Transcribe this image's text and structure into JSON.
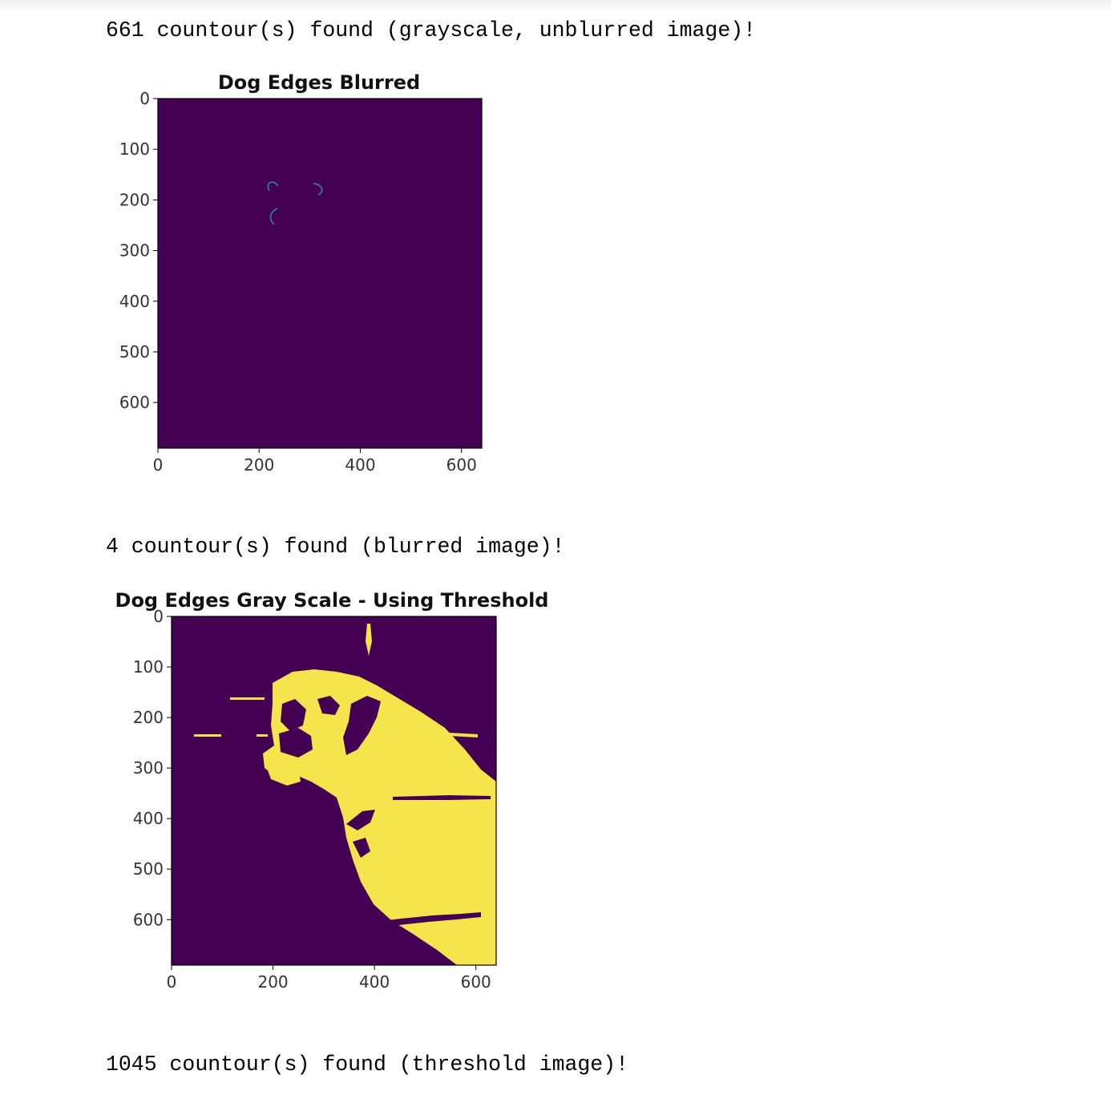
{
  "outputs": {
    "line1": "661 countour(s) found (grayscale, unblurred image)!",
    "line2": "4 countour(s) found (blurred image)!",
    "line3": "1045 countour(s) found (threshold image)!"
  },
  "colors": {
    "viridis_low": "#440154",
    "viridis_high": "#f5e44c",
    "edge_line": "#3b6b9a",
    "axis": "#000000"
  },
  "chart_data": [
    {
      "type": "heatmap",
      "title": "Dog Edges Blurred",
      "xlabel": "",
      "ylabel": "",
      "xlim": [
        0,
        640
      ],
      "ylim": [
        690,
        0
      ],
      "xticks": [
        0,
        200,
        400,
        600
      ],
      "yticks": [
        0,
        100,
        200,
        300,
        400,
        500,
        600
      ],
      "colormap": "viridis",
      "content": "thin edge curves on dark background"
    },
    {
      "type": "heatmap",
      "title": "Dog Edges Gray Scale - Using Threshold",
      "xlabel": "",
      "ylabel": "",
      "xlim": [
        0,
        640
      ],
      "ylim": [
        690,
        0
      ],
      "xticks": [
        0,
        200,
        400,
        600
      ],
      "yticks": [
        0,
        100,
        200,
        300,
        400,
        500,
        600
      ],
      "colormap": "viridis",
      "content": "binary threshold image of a dog"
    }
  ]
}
